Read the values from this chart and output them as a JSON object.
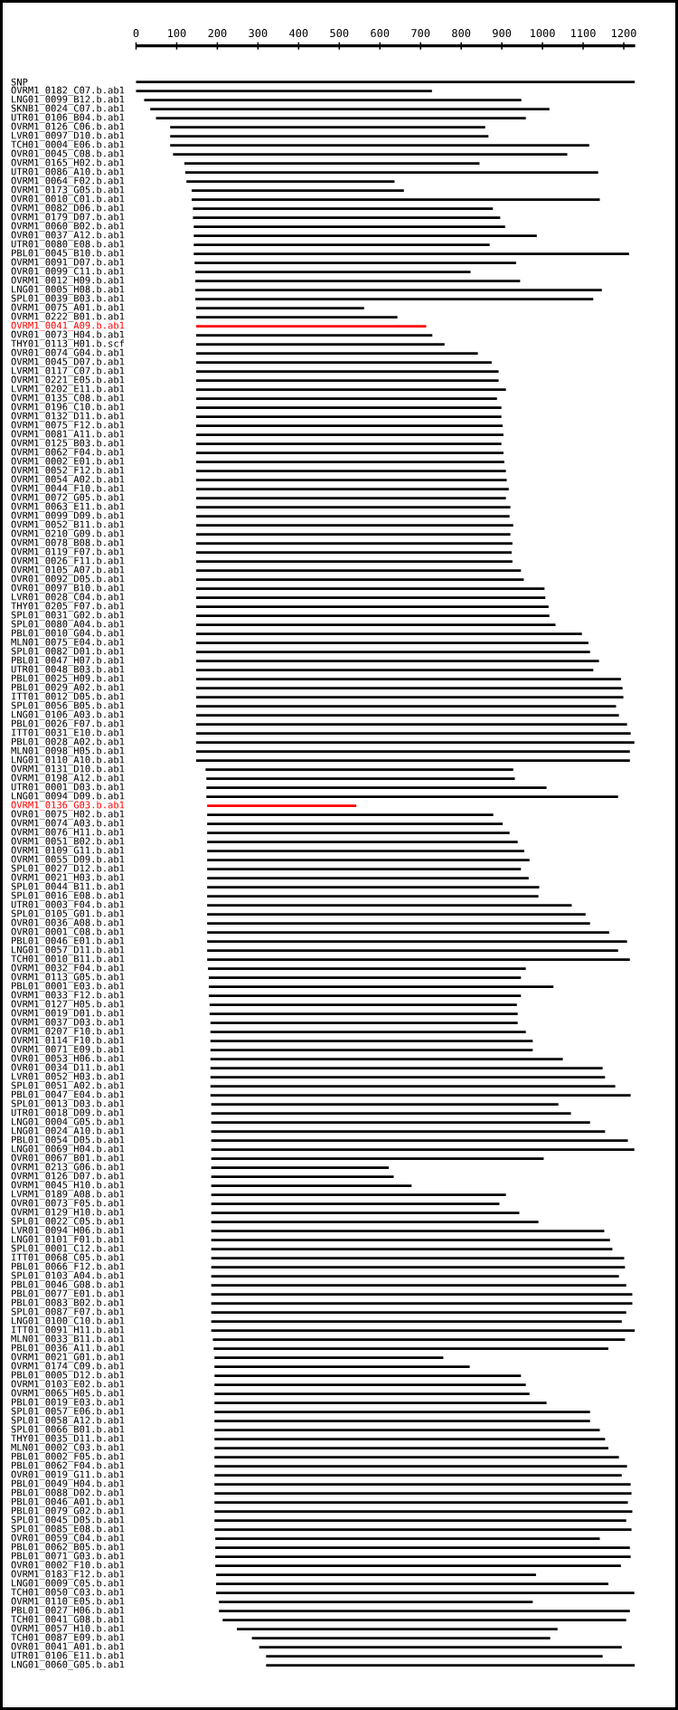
{
  "chart_data": {
    "type": "bar",
    "orientation": "horizontal",
    "categories": [
      "SNP",
      "OVRM1_0182_C07.b.ab1",
      "LNG01_0099_B12.b.ab1",
      "SKNB1_0024_C07.b.ab1",
      "UTR01_0106_B04.b.ab1",
      "OVRM1_0126_C06.b.ab1",
      "LVR01_0097_D10.b.ab1",
      "TCH01_0004_E06.b.ab1",
      "OVR01_0045_C08.b.ab1",
      "OVRM1_0165_H02.b.ab1",
      "UTR01_0086_A10.b.ab1",
      "OVRM1_0064_F02.b.ab1",
      "OVRM1_0173_G05.b.ab1",
      "OVR01_0010_C01.b.ab1",
      "OVRM1_0082_D06.b.ab1",
      "OVRM1_0179_D07.b.ab1",
      "OVRM1_0060_B02.b.ab1",
      "OVR01_0037_A12.b.ab1",
      "UTR01_0080_E08.b.ab1",
      "PBL01_0045_B10.b.ab1",
      "OVRM1_0091_D07.b.ab1",
      "OVR01_0099_C11.b.ab1",
      "OVRM1_0012_H09.b.ab1",
      "LNG01_0005_H08.b.ab1",
      "SPL01_0039_B03.b.ab1",
      "OVRM1_0075_A01.b.ab1",
      "OVRM1_0222_B01.b.ab1",
      "OVRM1_0041_A09.b.ab1",
      "OVR01_0073_H04.b.ab1",
      "THY01_0113_H01.b.scf",
      "OVR01_0074_G04.b.ab1",
      "OVRM1_0045_D07.b.ab1",
      "LVRM1_0117_C07.b.ab1",
      "OVRM1_0221_E05.b.ab1",
      "LVRM1_0202_E11.b.ab1",
      "OVRM1_0135_C08.b.ab1",
      "OVRM1_0196_C10.b.ab1",
      "OVRM1_0132_D11.b.ab1",
      "OVRM1_0075_F12.b.ab1",
      "OVRM1_0081_A11.b.ab1",
      "OVRM1_0125_B03.b.ab1",
      "OVRM1_0062_F04.b.ab1",
      "OVRM1_0002_E01.b.ab1",
      "OVRM1_0052_F12.b.ab1",
      "OVRM1_0054_A02.b.ab1",
      "OVRM1_0044_F10.b.ab1",
      "OVRM1_0072_G05.b.ab1",
      "OVRM1_0063_E11.b.ab1",
      "OVRM1_0099_D09.b.ab1",
      "OVRM1_0052_B11.b.ab1",
      "OVRM1_0210_G09.b.ab1",
      "OVRM1_0078_B08.b.ab1",
      "OVRM1_0119_F07.b.ab1",
      "OVRM1_0026_F11.b.ab1",
      "OVRM1_0105_A07.b.ab1",
      "OVR01_0092_D05.b.ab1",
      "OVR01_0097_B10.b.ab1",
      "LVR01_0028_C04.b.ab1",
      "THY01_0205_F07.b.ab1",
      "SPL01_0031_G02.b.ab1",
      "SPL01_0080_A04.b.ab1",
      "PBL01_0010_G04.b.ab1",
      "MLN01_0075_E04.b.ab1",
      "SPL01_0082_D01.b.ab1",
      "PBL01_0047_H07.b.ab1",
      "UTR01_0048_B03.b.ab1",
      "PBL01_0025_H09.b.ab1",
      "PBL01_0029_A02.b.ab1",
      "ITT01_0012_D05.b.ab1",
      "SPL01_0056_B05.b.ab1",
      "LNG01_0106_A03.b.ab1",
      "PBL01_0026_F07.b.ab1",
      "ITT01_0031_E10.b.ab1",
      "PBL01_0028_A02.b.ab1",
      "MLN01_0098_H05.b.ab1",
      "LNG01_0110_A10.b.ab1",
      "OVRM1_0131_D10.b.ab1",
      "OVRM1_0198_A12.b.ab1",
      "UTR01_0001_D03.b.ab1",
      "LNG01_0094_D09.b.ab1",
      "OVRM1_0136_G03.b.ab1",
      "OVR01_0075_H02.b.ab1",
      "OVRM1_0074_A03.b.ab1",
      "OVRM1_0076_H11.b.ab1",
      "OVRM1_0051_B02.b.ab1",
      "OVRM1_0109_G11.b.ab1",
      "OVRM1_0055_D09.b.ab1",
      "SPL01_0027_D12.b.ab1",
      "OVRM1_0021_H03.b.ab1",
      "SPL01_0044_B11.b.ab1",
      "SPL01_0016_E08.b.ab1",
      "UTR01_0003_F04.b.ab1",
      "SPL01_0105_G01.b.ab1",
      "OVR01_0036_A08.b.ab1",
      "OVR01_0001_C08.b.ab1",
      "PBL01_0046_E01.b.ab1",
      "LNG01_0057_D11.b.ab1",
      "TCH01_0010_B11.b.ab1",
      "OVRM1_0032_F04.b.ab1",
      "OVRM1_0113_G05.b.ab1",
      "PBL01_0001_E03.b.ab1",
      "OVRM1_0033_F12.b.ab1",
      "OVRM1_0127_H05.b.ab1",
      "OVRM1_0019_D01.b.ab1",
      "OVRM1_0037_D03.b.ab1",
      "OVRM1_0207_F10.b.ab1",
      "OVRM1_0114_F10.b.ab1",
      "OVRM1_0071_E09.b.ab1",
      "OVR01_0053_H06.b.ab1",
      "OVR01_0034_D11.b.ab1",
      "LVR01_0052_H03.b.ab1",
      "SPL01_0051_A02.b.ab1",
      "PBL01_0047_E04.b.ab1",
      "SPL01_0013_D03.b.ab1",
      "UTR01_0018_D09.b.ab1",
      "LNG01_0004_G05.b.ab1",
      "LNG01_0024_A10.b.ab1",
      "PBL01_0054_D05.b.ab1",
      "LNG01_0069_H04.b.ab1",
      "OVR01_0067_B01.b.ab1",
      "OVRM1_0213_G06.b.ab1",
      "OVRM1_0126_D07.b.ab1",
      "OVRM1_0045_H10.b.ab1",
      "LVRM1_0189_A08.b.ab1",
      "OVR01_0073_F05.b.ab1",
      "OVRM1_0129_H10.b.ab1",
      "SPL01_0022_C05.b.ab1",
      "LVR01_0094_H06.b.ab1",
      "LNG01_0101_F01.b.ab1",
      "SPL01_0001_C12.b.ab1",
      "ITT01_0068_C05.b.ab1",
      "PBL01_0066_F12.b.ab1",
      "SPL01_0103_A04.b.ab1",
      "PBL01_0046_G08.b.ab1",
      "PBL01_0077_E01.b.ab1",
      "PBL01_0083_B02.b.ab1",
      "SPL01_0087_F07.b.ab1",
      "LNG01_0100_C10.b.ab1",
      "ITT01_0091_H11.b.ab1",
      "MLN01_0033_B11.b.ab1",
      "PBL01_0036_A11.b.ab1",
      "OVRM1_0021_G01.b.ab1",
      "OVRM1_0174_C09.b.ab1",
      "PBL01_0005_D12.b.ab1",
      "OVRM1_0103_E02.b.ab1",
      "OVRM1_0065_H05.b.ab1",
      "PBL01_0019_E03.b.ab1",
      "SPL01_0057_E06.b.ab1",
      "SPL01_0058_A12.b.ab1",
      "SPL01_0066_B01.b.ab1",
      "THY01_0035_D11.b.ab1",
      "MLN01_0002_C03.b.ab1",
      "PBL01_0002_F05.b.ab1",
      "PBL01_0062_F04.b.ab1",
      "OVR01_0019_G11.b.ab1",
      "PBL01_0049_H04.b.ab1",
      "PBL01_0088_D02.b.ab1",
      "PBL01_0046_A01.b.ab1",
      "PBL01_0079_G02.b.ab1",
      "SPL01_0045_D05.b.ab1",
      "SPL01_0085_E08.b.ab1",
      "OVR01_0059_C04.b.ab1",
      "PBL01_0062_B05.b.ab1",
      "PBL01_0071_G03.b.ab1",
      "OVR01_0002_F10.b.ab1",
      "OVRM1_0183_F12.b.ab1",
      "LNG01_0009_C05.b.ab1",
      "TCH01_0050_C03.b.ab1",
      "OVRM1_0110_E05.b.ab1",
      "PBL01_0027_H06.b.ab1",
      "TCH01_0041_G08.b.ab1",
      "OVRM1_0057_H10.b.ab1",
      "TCH01_0087_E09.b.ab1",
      "OVR01_0041_A01.b.ab1",
      "UTR01_0106_E11.b.ab1",
      "LNG01_0060_G05.b.ab1"
    ],
    "base": [
      0,
      0,
      20,
      35,
      49,
      84,
      84,
      84,
      91,
      119,
      121,
      124,
      137,
      137,
      140,
      140,
      142,
      142,
      142,
      142,
      144,
      146,
      146,
      146,
      146,
      148,
      148,
      148,
      148,
      148,
      148,
      148,
      148,
      148,
      148,
      148,
      148,
      148,
      148,
      148,
      148,
      148,
      148,
      148,
      148,
      148,
      148,
      148,
      148,
      148,
      148,
      148,
      148,
      148,
      148,
      148,
      148,
      148,
      148,
      148,
      148,
      148,
      148,
      148,
      148,
      148,
      148,
      148,
      148,
      148,
      148,
      148,
      148,
      148,
      148,
      148,
      171,
      173,
      173,
      173,
      175,
      175,
      175,
      175,
      175,
      175,
      175,
      175,
      175,
      175,
      175,
      175,
      175,
      175,
      175,
      175,
      175,
      175,
      177,
      179,
      179,
      179,
      181,
      181,
      183,
      183,
      183,
      183,
      183,
      183,
      183,
      183,
      183,
      185,
      185,
      185,
      185,
      185,
      185,
      185,
      185,
      185,
      185,
      185,
      185,
      185,
      185,
      185,
      185,
      185,
      185,
      185,
      185,
      185,
      185,
      185,
      185,
      185,
      185,
      189,
      191,
      193,
      193,
      193,
      193,
      193,
      193,
      193,
      193,
      193,
      193,
      193,
      193,
      193,
      193,
      193,
      193,
      193,
      193,
      193,
      193,
      195,
      195,
      195,
      195,
      197,
      197,
      197,
      204,
      204,
      213,
      248,
      285,
      303,
      320,
      320
    ],
    "values": [
      1227,
      728,
      928,
      982,
      910,
      775,
      783,
      1031,
      970,
      726,
      1016,
      512,
      522,
      1004,
      738,
      756,
      766,
      844,
      728,
      1071,
      791,
      677,
      799,
      1000,
      979,
      413,
      495,
      566,
      581,
      611,
      693,
      727,
      744,
      744,
      762,
      740,
      751,
      751,
      754,
      756,
      751,
      756,
      758,
      762,
      764,
      769,
      762,
      773,
      771,
      780,
      773,
      778,
      776,
      778,
      799,
      806,
      857,
      859,
      867,
      869,
      884,
      949,
      965,
      969,
      991,
      977,
      1045,
      1049,
      1051,
      1033,
      1040,
      1060,
      1069,
      1078,
      1067,
      1067,
      757,
      759,
      837,
      1013,
      367,
      704,
      727,
      744,
      764,
      780,
      793,
      772,
      791,
      817,
      815,
      897,
      931,
      942,
      989,
      1033,
      1011,
      1040,
      782,
      768,
      848,
      768,
      756,
      758,
      756,
      776,
      793,
      793,
      867,
      965,
      971,
      996,
      1034,
      854,
      885,
      932,
      969,
      1025,
      1041,
      818,
      437,
      449,
      493,
      725,
      709,
      758,
      805,
      967,
      981,
      987,
      1016,
      1018,
      1003,
      1021,
      1036,
      1036,
      1021,
      1010,
      1042,
      1014,
      971,
      563,
      628,
      754,
      766,
      775,
      817,
      924,
      924,
      948,
      961,
      969,
      995,
      1015,
      1002,
      1024,
      1026,
      1017,
      1028,
      1013,
      1026,
      946,
      1020,
      1022,
      998,
      787,
      965,
      1029,
      772,
      1011,
      993,
      789,
      734,
      892,
      828,
      907
    ],
    "colors": [
      "#000000",
      "#000000",
      "#000000",
      "#000000",
      "#000000",
      "#000000",
      "#000000",
      "#000000",
      "#000000",
      "#000000",
      "#000000",
      "#000000",
      "#000000",
      "#000000",
      "#000000",
      "#000000",
      "#000000",
      "#000000",
      "#000000",
      "#000000",
      "#000000",
      "#000000",
      "#000000",
      "#000000",
      "#000000",
      "#000000",
      "#000000",
      "#ff0000",
      "#000000",
      "#000000",
      "#000000",
      "#000000",
      "#000000",
      "#000000",
      "#000000",
      "#000000",
      "#000000",
      "#000000",
      "#000000",
      "#000000",
      "#000000",
      "#000000",
      "#000000",
      "#000000",
      "#000000",
      "#000000",
      "#000000",
      "#000000",
      "#000000",
      "#000000",
      "#000000",
      "#000000",
      "#000000",
      "#000000",
      "#000000",
      "#000000",
      "#000000",
      "#000000",
      "#000000",
      "#000000",
      "#000000",
      "#000000",
      "#000000",
      "#000000",
      "#000000",
      "#000000",
      "#000000",
      "#000000",
      "#000000",
      "#000000",
      "#000000",
      "#000000",
      "#000000",
      "#000000",
      "#000000",
      "#000000",
      "#000000",
      "#000000",
      "#000000",
      "#000000",
      "#ff0000",
      "#000000",
      "#000000",
      "#000000",
      "#000000",
      "#000000",
      "#000000",
      "#000000",
      "#000000",
      "#000000",
      "#000000",
      "#000000",
      "#000000",
      "#000000",
      "#000000",
      "#000000",
      "#000000",
      "#000000",
      "#000000",
      "#000000",
      "#000000",
      "#000000",
      "#000000",
      "#000000",
      "#000000",
      "#000000",
      "#000000",
      "#000000",
      "#000000",
      "#000000",
      "#000000",
      "#000000",
      "#000000",
      "#000000",
      "#000000",
      "#000000",
      "#000000",
      "#000000",
      "#000000",
      "#000000",
      "#000000",
      "#000000",
      "#000000",
      "#000000",
      "#000000",
      "#000000",
      "#000000",
      "#000000",
      "#000000",
      "#000000",
      "#000000",
      "#000000",
      "#000000",
      "#000000",
      "#000000",
      "#000000",
      "#000000",
      "#000000",
      "#000000",
      "#000000",
      "#000000",
      "#000000",
      "#000000",
      "#000000",
      "#000000",
      "#000000",
      "#000000",
      "#000000",
      "#000000",
      "#000000",
      "#000000",
      "#000000",
      "#000000",
      "#000000",
      "#000000",
      "#000000",
      "#000000",
      "#000000",
      "#000000",
      "#000000",
      "#000000",
      "#000000",
      "#000000",
      "#000000",
      "#000000",
      "#000000",
      "#000000",
      "#000000",
      "#000000",
      "#000000",
      "#000000",
      "#000000",
      "#000000",
      "#000000",
      "#000000",
      "#000000"
    ],
    "xlim": [
      0,
      1228
    ],
    "xticks": [
      0,
      100,
      200,
      300,
      400,
      500,
      600,
      700,
      800,
      900,
      1000,
      1100,
      1200
    ]
  }
}
